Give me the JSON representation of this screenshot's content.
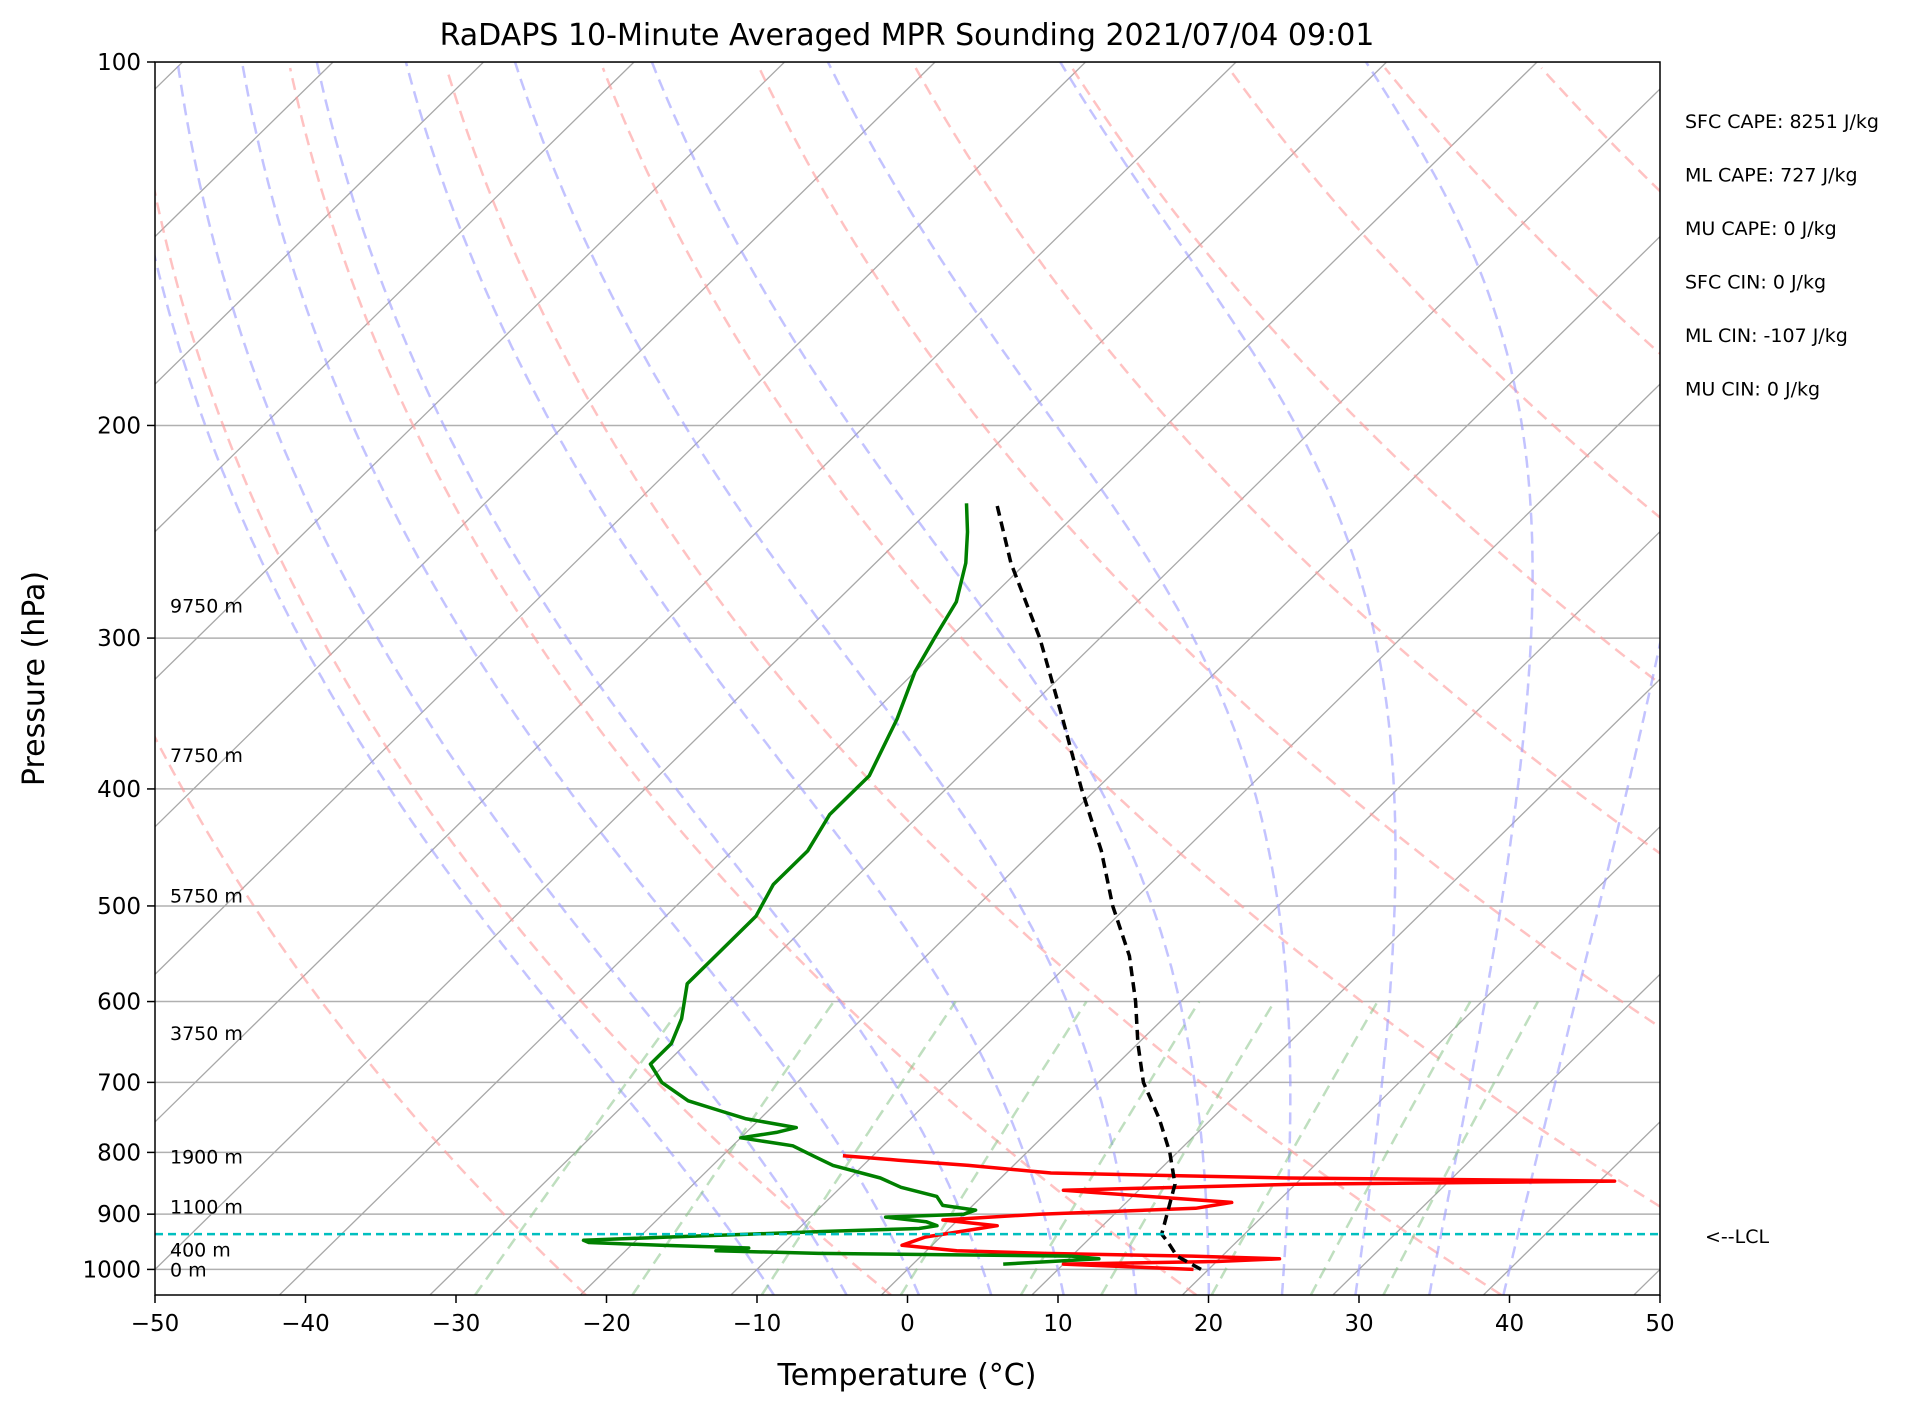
{
  "chart_data": {
    "type": "skew-t",
    "title": "RaDAPS 10-Minute Averaged MPR Sounding 2021/07/04 09:01",
    "xlabel": "Temperature (°C)",
    "ylabel": "Pressure (hPa)",
    "xlim": [
      -50,
      50
    ],
    "ylim": [
      1050,
      100
    ],
    "y_scale": "log",
    "grid": true,
    "x_ticks": [
      -50,
      -40,
      -30,
      -20,
      -10,
      0,
      10,
      20,
      30,
      40,
      50
    ],
    "x_tick_labels": [
      "−50",
      "−40",
      "−30",
      "−20",
      "−10",
      "0",
      "10",
      "20",
      "30",
      "40",
      "50"
    ],
    "y_ticks": [
      100,
      200,
      300,
      400,
      500,
      600,
      700,
      800,
      900,
      1000
    ],
    "y_tick_labels": [
      "100",
      "200",
      "300",
      "400",
      "500",
      "600",
      "700",
      "800",
      "900",
      "1000"
    ],
    "height_labels": [
      {
        "p": 1000,
        "text": "0 m"
      },
      {
        "p": 963,
        "text": "400 m"
      },
      {
        "p": 887,
        "text": "1100 m"
      },
      {
        "p": 806,
        "text": "1900 m"
      },
      {
        "p": 637,
        "text": "3750 m"
      },
      {
        "p": 490,
        "text": "5750 m"
      },
      {
        "p": 375,
        "text": "7750 m"
      },
      {
        "p": 282,
        "text": "9750 m"
      }
    ],
    "lcl": {
      "p": 935,
      "label": "<--LCL"
    },
    "parameters": [
      "SFC CAPE: 8251 J/kg",
      "ML CAPE: 727 J/kg",
      "MU CAPE: 0 J/kg",
      "SFC CIN: 0 J/kg",
      "ML CIN: -107 J/kg",
      "MU CIN: 0 J/kg"
    ],
    "series": [
      {
        "key": "temperature",
        "color": "#ff0000",
        "points": [
          [
            1000,
            19
          ],
          [
            995,
            14.5
          ],
          [
            990,
            10
          ],
          [
            985,
            20
          ],
          [
            980,
            24
          ],
          [
            975,
            18
          ],
          [
            970,
            8
          ],
          [
            965,
            2
          ],
          [
            955,
            -2
          ],
          [
            940,
            -1
          ],
          [
            930,
            1
          ],
          [
            920,
            3
          ],
          [
            910,
            -1
          ],
          [
            900,
            5
          ],
          [
            890,
            15
          ],
          [
            880,
            17
          ],
          [
            870,
            11
          ],
          [
            860,
            5
          ],
          [
            850,
            20
          ],
          [
            845,
            41
          ],
          [
            840,
            19
          ],
          [
            832,
            3
          ],
          [
            820,
            -3
          ],
          [
            812,
            -8
          ],
          [
            805,
            -12
          ]
        ]
      },
      {
        "key": "dewpoint",
        "color": "#008000",
        "points": [
          [
            990,
            6
          ],
          [
            985,
            9
          ],
          [
            980,
            12
          ],
          [
            975,
            10
          ],
          [
            970,
            -7
          ],
          [
            965,
            -14
          ],
          [
            960,
            -12
          ],
          [
            955,
            -18
          ],
          [
            950,
            -23
          ],
          [
            946,
            -23.5
          ],
          [
            940,
            -18
          ],
          [
            935,
            -13
          ],
          [
            930,
            -8
          ],
          [
            925,
            -2
          ],
          [
            920,
            -1
          ],
          [
            913,
            -2
          ],
          [
            905,
            -5
          ],
          [
            900,
            0
          ],
          [
            893,
            0.5
          ],
          [
            885,
            -2
          ],
          [
            870,
            -3
          ],
          [
            855,
            -6
          ],
          [
            840,
            -8
          ],
          [
            820,
            -12
          ],
          [
            805,
            -14
          ],
          [
            790,
            -16
          ],
          [
            778,
            -20
          ],
          [
            770,
            -18
          ],
          [
            763,
            -17
          ],
          [
            750,
            -21
          ],
          [
            740,
            -23
          ],
          [
            725,
            -26
          ],
          [
            700,
            -29
          ],
          [
            676,
            -31
          ],
          [
            650,
            -31
          ],
          [
            620,
            -32
          ],
          [
            580,
            -34
          ],
          [
            550,
            -34
          ],
          [
            510,
            -34
          ],
          [
            480,
            -35
          ],
          [
            450,
            -35
          ],
          [
            420,
            -36
          ],
          [
            390,
            -36
          ],
          [
            350,
            -38
          ],
          [
            320,
            -40
          ],
          [
            300,
            -41
          ],
          [
            280,
            -42
          ],
          [
            260,
            -44
          ],
          [
            245,
            -46
          ],
          [
            232,
            -48
          ]
        ]
      },
      {
        "key": "parcel",
        "color": "#000000",
        "points": [
          [
            1000,
            19.5
          ],
          [
            975,
            17
          ],
          [
            950,
            15.5
          ],
          [
            935,
            14.5
          ],
          [
            900,
            13.5
          ],
          [
            850,
            12
          ],
          [
            800,
            9.5
          ],
          [
            750,
            6.5
          ],
          [
            700,
            3
          ],
          [
            650,
            0
          ],
          [
            600,
            -3
          ],
          [
            550,
            -6.5
          ],
          [
            500,
            -11
          ],
          [
            450,
            -15.5
          ],
          [
            400,
            -21
          ],
          [
            350,
            -27
          ],
          [
            300,
            -34
          ],
          [
            260,
            -41
          ],
          [
            232,
            -46
          ]
        ]
      }
    ],
    "dry_adiabats_K": [
      250,
      270,
      290,
      310,
      330,
      350,
      370,
      390,
      410,
      430,
      450,
      470
    ],
    "moist_adiabats_C": [
      -10,
      -5,
      0,
      5,
      10,
      15,
      20,
      25,
      30,
      35,
      40
    ],
    "mixing_ratio_lines_gkg": [
      0.4,
      1,
      2,
      4,
      7,
      10,
      16,
      24,
      32
    ]
  }
}
